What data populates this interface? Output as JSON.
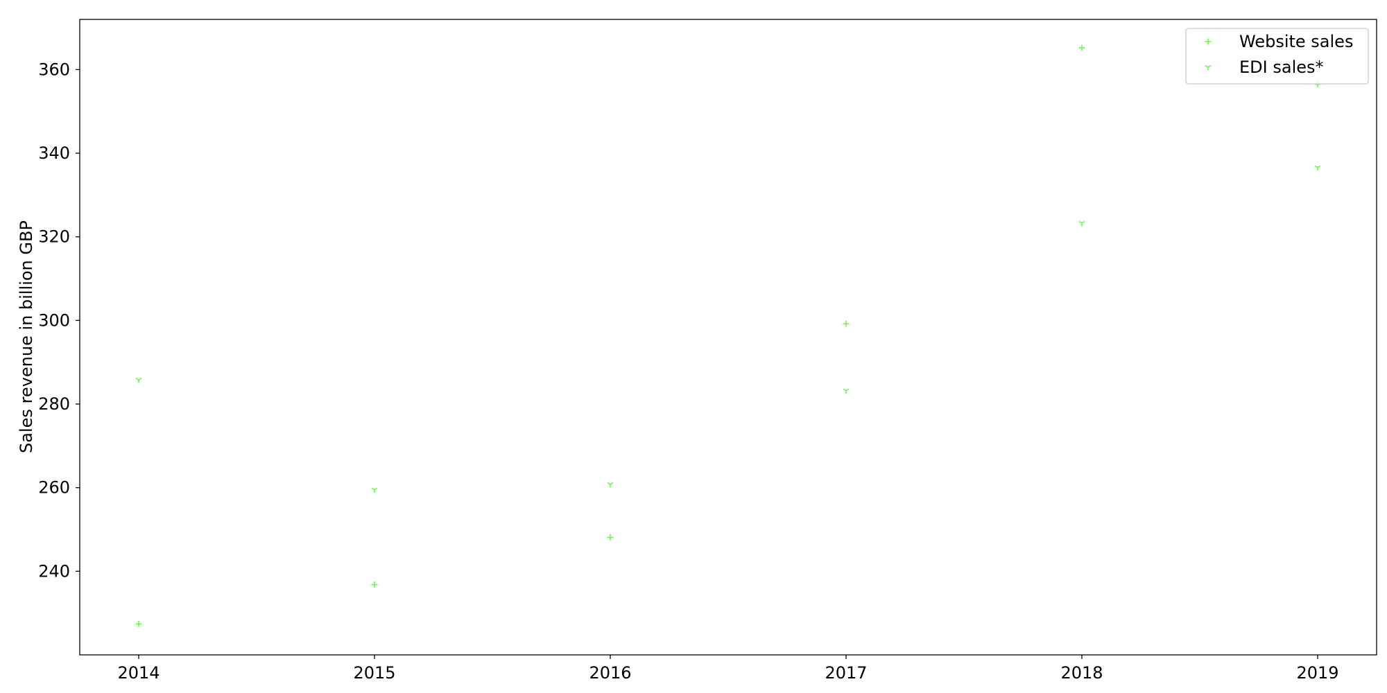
{
  "chart_data": {
    "type": "scatter",
    "title": "",
    "xlabel": "",
    "ylabel": "Sales revenue in billion GBP",
    "x": [
      2014,
      2015,
      2016,
      2017,
      2018,
      2019
    ],
    "xlim": [
      2013.75,
      2019.25
    ],
    "ylim": [
      220,
      372
    ],
    "y_ticks": [
      240,
      260,
      280,
      300,
      320,
      340,
      360
    ],
    "grid": false,
    "legend_position": "top-right",
    "series": [
      {
        "name": "Website sales",
        "marker": "plus",
        "color": "#66ff44",
        "values": [
          227.4,
          236.8,
          248.1,
          299.2,
          365.2,
          356.5
        ]
      },
      {
        "name": "EDI sales*",
        "marker": "tri-down",
        "color": "#66ff44",
        "values": [
          285.8,
          259.5,
          260.8,
          283.2,
          323.3,
          336.6
        ]
      }
    ]
  }
}
